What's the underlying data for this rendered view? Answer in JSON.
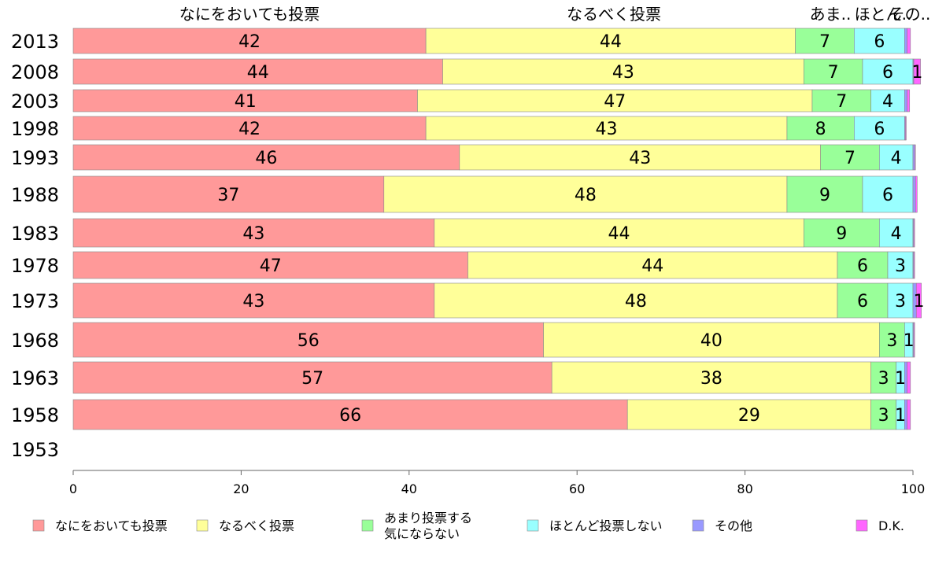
{
  "chart_data": {
    "type": "bar",
    "orientation": "horizontal",
    "stacked": true,
    "title": "",
    "xlabel": "",
    "ylabel": "",
    "xlim": [
      0,
      100
    ],
    "x_ticks": [
      "0",
      "20",
      "40",
      "60",
      "80",
      "100"
    ],
    "categories": [
      "2013",
      "2008",
      "2003",
      "1998",
      "1993",
      "1988",
      "1983",
      "1978",
      "1973",
      "1968",
      "1963",
      "1958",
      "1953"
    ],
    "top_labels": [
      "なにをおいても投票",
      "なるべく投票",
      "あま..",
      "ほとん..",
      "その.."
    ],
    "legend_position": "bottom",
    "series": [
      {
        "name": "なにをおいても投票",
        "color": "#ff9999",
        "values": [
          42,
          44,
          41,
          42,
          46,
          37,
          43,
          47,
          43,
          56,
          57,
          66,
          null
        ],
        "labels": [
          "42",
          "44",
          "41",
          "42",
          "46",
          "37",
          "43",
          "47",
          "43",
          "56",
          "57",
          "66",
          ""
        ]
      },
      {
        "name": "なるべく投票",
        "color": "#ffff99",
        "values": [
          44,
          43,
          47,
          43,
          43,
          48,
          44,
          44,
          48,
          40,
          38,
          29,
          null
        ],
        "labels": [
          "44",
          "43",
          "47",
          "43",
          "43",
          "48",
          "44",
          "44",
          "48",
          "40",
          "38",
          "29",
          ""
        ]
      },
      {
        "name": "あまり投票する気にならない",
        "color": "#99ff99",
        "values": [
          7,
          7,
          7,
          8,
          7,
          9,
          9,
          6,
          6,
          3,
          3,
          3,
          null
        ],
        "labels": [
          "7",
          "7",
          "7",
          "8",
          "7",
          "9",
          "9",
          "6",
          "6",
          "3",
          "3",
          "3",
          ""
        ]
      },
      {
        "name": "ほとんど投票しない",
        "color": "#99ffff",
        "values": [
          6,
          6,
          4,
          6,
          4,
          6,
          4,
          3,
          3,
          1,
          1,
          1,
          null
        ],
        "labels": [
          "6",
          "6",
          "4",
          "6",
          "4",
          "6",
          "4",
          "3",
          "3",
          "1",
          "1",
          "1",
          ""
        ]
      },
      {
        "name": "その他",
        "color": "#9999ff",
        "values": [
          0.3,
          0.1,
          0.3,
          0.1,
          0.2,
          0.3,
          0.1,
          0.1,
          0.4,
          0.1,
          0.3,
          0.3,
          null
        ],
        "labels": [
          "",
          "",
          "",
          "",
          "",
          "",
          "",
          "",
          "",
          "",
          "",
          "",
          ""
        ]
      },
      {
        "name": "D.K.",
        "color": "#ff66ff",
        "values": [
          0.4,
          0.8,
          0.3,
          0.1,
          0.1,
          0.2,
          0.1,
          0.1,
          0.6,
          0.1,
          0.4,
          0.4,
          null
        ],
        "labels": [
          "",
          "1",
          "",
          "",
          "",
          "",
          "",
          "",
          "1",
          "",
          "",
          "",
          ""
        ]
      }
    ],
    "legend": [
      {
        "lines": [
          "なにをおいても投票"
        ],
        "color": "#ff9999"
      },
      {
        "lines": [
          "なるべく投票"
        ],
        "color": "#ffff99"
      },
      {
        "lines": [
          "あまり投票する",
          "気にならない"
        ],
        "color": "#99ff99"
      },
      {
        "lines": [
          "ほとんど投票しない"
        ],
        "color": "#99ffff"
      },
      {
        "lines": [
          "その他"
        ],
        "color": "#9999ff"
      },
      {
        "lines": [
          "D.K."
        ],
        "color": "#ff66ff"
      }
    ]
  }
}
